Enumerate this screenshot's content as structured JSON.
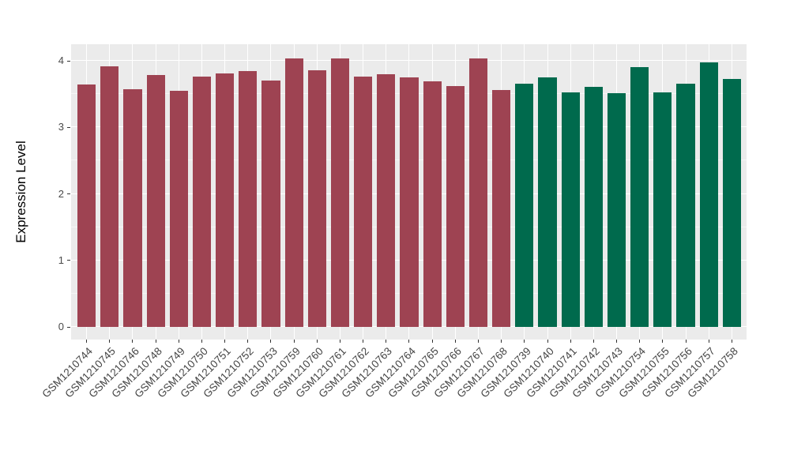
{
  "chart_data": {
    "type": "bar",
    "title": "",
    "xlabel": "",
    "ylabel": "Expression Level",
    "ylim": [
      0,
      4.25
    ],
    "yticks": [
      0,
      1,
      2,
      3,
      4
    ],
    "minor_grid_step": 0.5,
    "grid": "horizontal major+minor white lines and vertical white lines at category centers on grey panel",
    "legend": "none",
    "group_colors": {
      "group1": "#9E4352",
      "group2": "#006A4D"
    },
    "bars": [
      {
        "label": "GSM1210744",
        "value": 3.65,
        "group": "group1"
      },
      {
        "label": "GSM1210745",
        "value": 3.92,
        "group": "group1"
      },
      {
        "label": "GSM1210746",
        "value": 3.57,
        "group": "group1"
      },
      {
        "label": "GSM1210748",
        "value": 3.79,
        "group": "group1"
      },
      {
        "label": "GSM1210749",
        "value": 3.55,
        "group": "group1"
      },
      {
        "label": "GSM1210750",
        "value": 3.76,
        "group": "group1"
      },
      {
        "label": "GSM1210751",
        "value": 3.81,
        "group": "group1"
      },
      {
        "label": "GSM1210752",
        "value": 3.84,
        "group": "group1"
      },
      {
        "label": "GSM1210753",
        "value": 3.7,
        "group": "group1"
      },
      {
        "label": "GSM1210759",
        "value": 4.04,
        "group": "group1"
      },
      {
        "label": "GSM1210760",
        "value": 3.86,
        "group": "group1"
      },
      {
        "label": "GSM1210761",
        "value": 4.04,
        "group": "group1"
      },
      {
        "label": "GSM1210762",
        "value": 3.76,
        "group": "group1"
      },
      {
        "label": "GSM1210763",
        "value": 3.8,
        "group": "group1"
      },
      {
        "label": "GSM1210764",
        "value": 3.75,
        "group": "group1"
      },
      {
        "label": "GSM1210765",
        "value": 3.69,
        "group": "group1"
      },
      {
        "label": "GSM1210766",
        "value": 3.62,
        "group": "group1"
      },
      {
        "label": "GSM1210767",
        "value": 4.04,
        "group": "group1"
      },
      {
        "label": "GSM1210768",
        "value": 3.56,
        "group": "group1"
      },
      {
        "label": "GSM1210739",
        "value": 3.66,
        "group": "group2"
      },
      {
        "label": "GSM1210740",
        "value": 3.75,
        "group": "group2"
      },
      {
        "label": "GSM1210741",
        "value": 3.53,
        "group": "group2"
      },
      {
        "label": "GSM1210742",
        "value": 3.61,
        "group": "group2"
      },
      {
        "label": "GSM1210743",
        "value": 3.51,
        "group": "group2"
      },
      {
        "label": "GSM1210754",
        "value": 3.9,
        "group": "group2"
      },
      {
        "label": "GSM1210755",
        "value": 3.52,
        "group": "group2"
      },
      {
        "label": "GSM1210756",
        "value": 3.66,
        "group": "group2"
      },
      {
        "label": "GSM1210757",
        "value": 3.98,
        "group": "group2"
      },
      {
        "label": "GSM1210758",
        "value": 3.73,
        "group": "group2"
      }
    ],
    "style": {
      "panel_background": "#EBEBEB",
      "major_gridline_color": "#FFFFFF",
      "axis_tick_color": "#333333",
      "axis_text_color": "#4A4A4A",
      "axis_title_color": "#000000",
      "figure_background": "#FFFFFF"
    }
  }
}
